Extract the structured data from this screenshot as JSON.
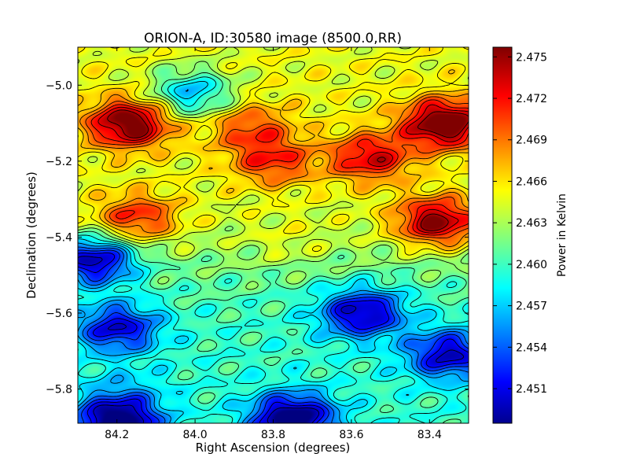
{
  "chart_data": {
    "type": "heatmap",
    "title": "ORION-A, ID:30580 image (8500.0,RR)",
    "xlabel": "Right Ascension (degrees)",
    "ylabel": "Declination (degrees)",
    "xlim": [
      84.3,
      83.3
    ],
    "ylim": [
      -5.89,
      -4.9
    ],
    "x_ticks": [
      84.2,
      84.0,
      83.8,
      83.6,
      83.4
    ],
    "x_tick_labels": [
      "84.2",
      "84.0",
      "83.8",
      "83.6",
      "83.4"
    ],
    "y_ticks": [
      -5.0,
      -5.2,
      -5.4,
      -5.6,
      -5.8
    ],
    "y_tick_labels": [
      "−5.0",
      "−5.2",
      "−5.4",
      "−5.6",
      "−5.8"
    ],
    "colorbar": {
      "label": "Power in Kelvin",
      "range": [
        2.4485,
        2.4757
      ],
      "ticks": [
        2.451,
        2.454,
        2.457,
        2.46,
        2.463,
        2.466,
        2.469,
        2.472,
        2.475
      ],
      "tick_labels": [
        "2.451",
        "2.454",
        "2.457",
        "2.460",
        "2.463",
        "2.466",
        "2.469",
        "2.472",
        "2.475"
      ],
      "colormap": "jet"
    },
    "contours": true,
    "features": [
      {
        "ra": 84.17,
        "dec": -5.1,
        "value": 2.4745
      },
      {
        "ra": 83.36,
        "dec": -5.1,
        "value": 2.4755
      },
      {
        "ra": 83.38,
        "dec": -5.36,
        "value": 2.474
      },
      {
        "ra": 84.15,
        "dec": -5.35,
        "value": 2.47
      },
      {
        "ra": 83.8,
        "dec": -5.2,
        "value": 2.469
      },
      {
        "ra": 83.55,
        "dec": -5.19,
        "value": 2.471
      },
      {
        "ra": 83.86,
        "dec": -5.11,
        "value": 2.468
      },
      {
        "ra": 84.26,
        "dec": -5.46,
        "value": 2.45
      },
      {
        "ra": 83.57,
        "dec": -5.6,
        "value": 2.4515
      },
      {
        "ra": 84.2,
        "dec": -5.64,
        "value": 2.453
      },
      {
        "ra": 84.01,
        "dec": -5.02,
        "value": 2.4545
      },
      {
        "ra": 83.35,
        "dec": -5.71,
        "value": 2.4525
      },
      {
        "ra": 83.75,
        "dec": -5.88,
        "value": 2.449
      },
      {
        "ra": 84.2,
        "dec": -5.89,
        "value": 2.449
      },
      {
        "ra": 83.76,
        "dec": -5.42,
        "value": 2.464
      },
      {
        "ra": 84.18,
        "dec": -5.81,
        "value": 2.46
      }
    ]
  }
}
